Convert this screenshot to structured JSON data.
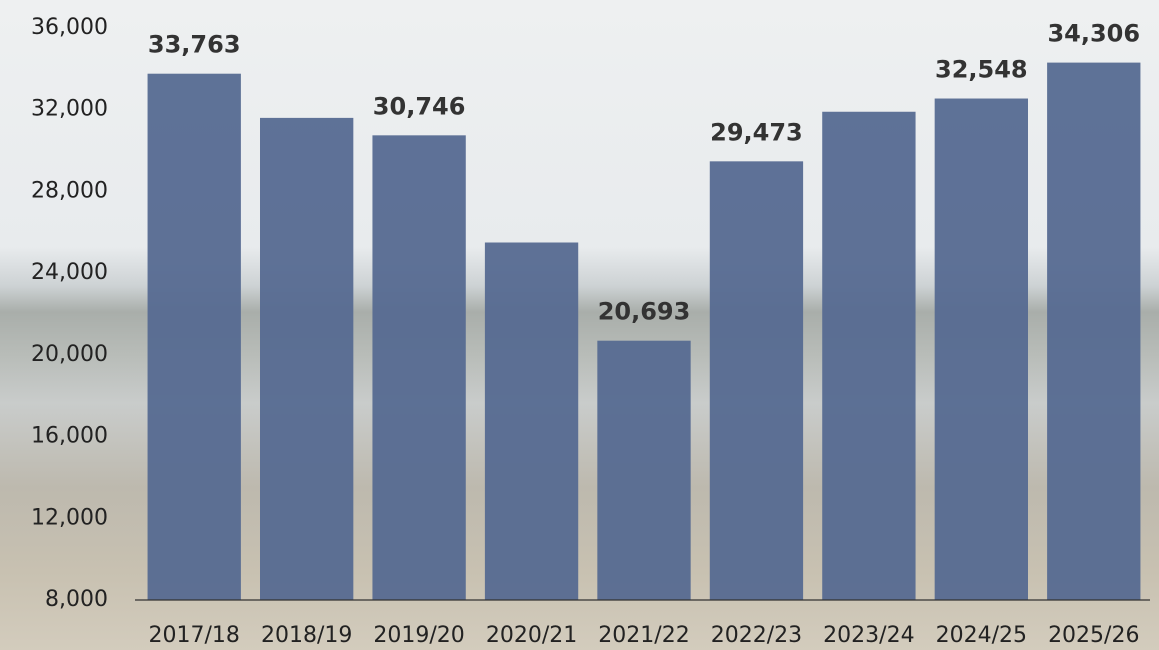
{
  "chart_data": {
    "type": "bar",
    "categories": [
      "2017/18",
      "2018/19",
      "2019/20",
      "2020/21",
      "2021/22",
      "2022/23",
      "2023/24",
      "2024/25",
      "2025/26"
    ],
    "values": [
      33763,
      31600,
      30746,
      25500,
      20693,
      29473,
      31900,
      32548,
      34306
    ],
    "value_labels": [
      "33,763",
      null,
      "30,746",
      null,
      "20,693",
      "29,473",
      null,
      "32,548",
      "34,306"
    ],
    "color": "#566a91",
    "ylim": [
      8000,
      36000
    ],
    "yticks": [
      {
        "value": 8000,
        "label": "8,000"
      },
      {
        "value": 12000,
        "label": "12,000"
      },
      {
        "value": 16000,
        "label": "16,000"
      },
      {
        "value": 20000,
        "label": "20,000"
      },
      {
        "value": 24000,
        "label": "24,000"
      },
      {
        "value": 28000,
        "label": "28,000"
      },
      {
        "value": 32000,
        "label": "32,000"
      },
      {
        "value": 36000,
        "label": "36,000"
      }
    ],
    "grid": false
  }
}
